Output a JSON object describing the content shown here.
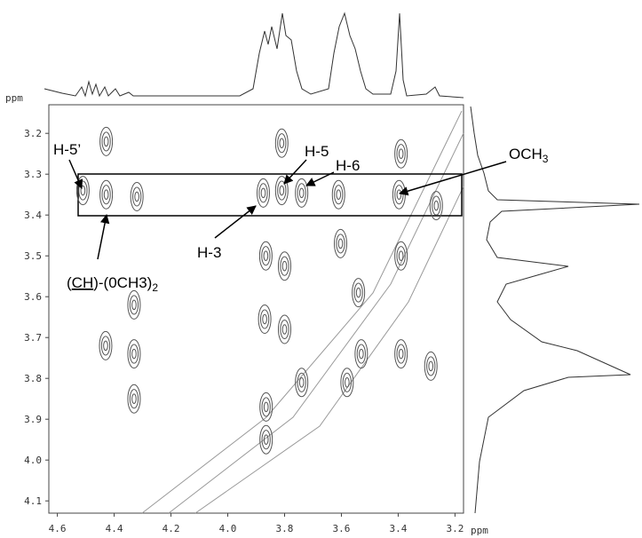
{
  "chart_data": {
    "type": "nmr2d",
    "xlabel": "ppm",
    "top_trace_label": "ppm",
    "xlim": [
      4.63,
      3.17
    ],
    "ylim": [
      3.13,
      4.13
    ],
    "xticks": [
      4.6,
      4.4,
      4.2,
      {
        "value": 4,
        "label": "4.0"
      },
      3.8,
      3.6,
      3.4,
      3.2
    ],
    "yticks": [
      3.2,
      3.3,
      3.4,
      3.5,
      3.6,
      3.7,
      3.8,
      3.9,
      {
        "value": 4,
        "label": "4.0"
      },
      4.1
    ],
    "peaks": {
      "x": [
        4.428,
        4.428,
        4.51,
        4.32,
        3.875,
        3.81,
        3.74,
        3.61,
        3.397,
        3.266,
        3.81,
        3.866,
        3.8,
        3.603,
        3.54,
        3.87,
        3.8,
        4.33,
        4.33,
        4.33,
        4.43,
        3.53,
        3.58,
        3.74,
        3.865,
        3.285,
        3.39,
        3.865,
        3.39,
        3.39
      ],
      "y": [
        3.22,
        3.35,
        3.34,
        3.355,
        3.346,
        3.34,
        3.346,
        3.35,
        3.35,
        3.377,
        3.224,
        3.5,
        3.525,
        3.47,
        3.59,
        3.655,
        3.68,
        3.62,
        3.74,
        3.85,
        3.72,
        3.74,
        3.81,
        3.81,
        3.87,
        3.77,
        3.74,
        3.95,
        3.5,
        3.25
      ]
    },
    "color": "#555555",
    "annotations": [
      {
        "parts": [
          "H-5’"
        ]
      },
      {
        "parts": [
          "(",
          "CH",
          ")-(0CH3)",
          "2"
        ]
      },
      {
        "parts": [
          "H-3"
        ]
      },
      {
        "parts": [
          "H-5"
        ]
      },
      {
        "parts": [
          "H-6"
        ]
      },
      {
        "parts": [
          "OCH",
          "3"
        ]
      }
    ]
  }
}
